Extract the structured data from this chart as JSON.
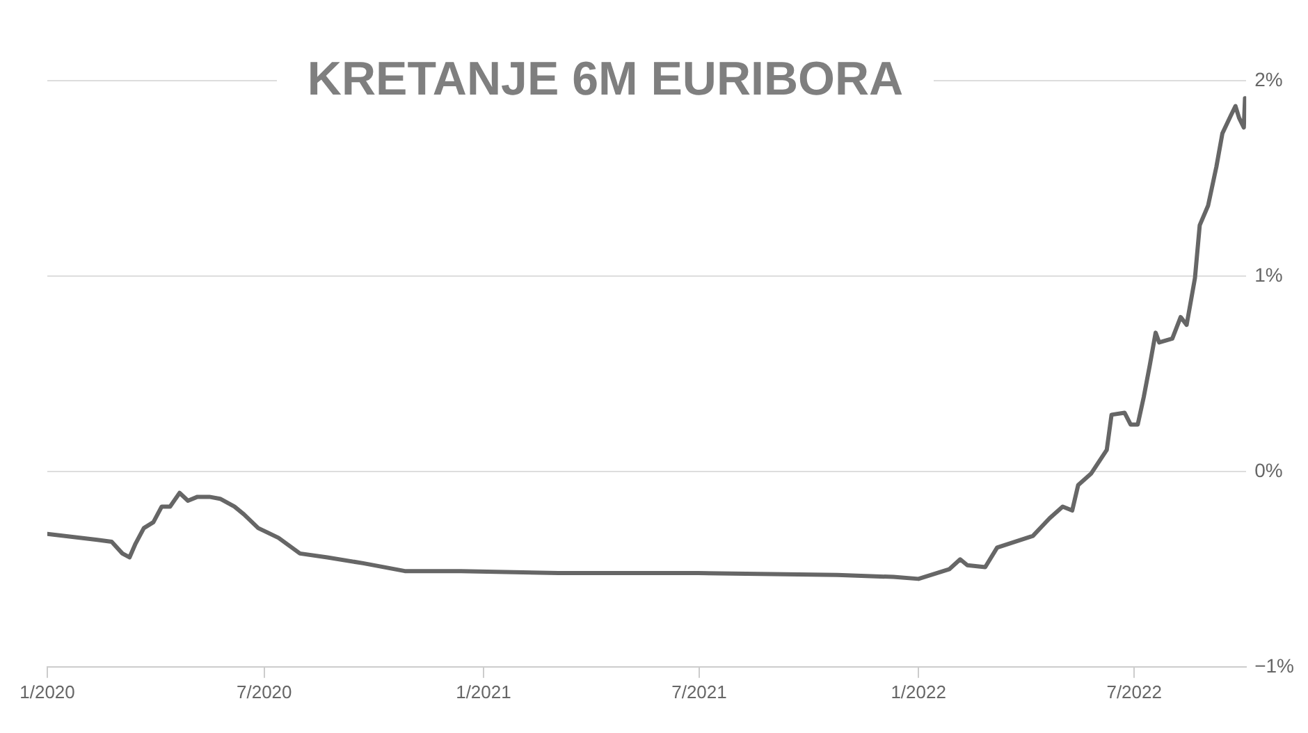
{
  "chart_data": {
    "type": "line",
    "title": "KRETANJE 6M EURIBORA",
    "x": [
      "2020-01-01",
      "2020-02-12",
      "2020-02-24",
      "2020-03-04",
      "2020-03-10",
      "2020-03-15",
      "2020-03-22",
      "2020-03-30",
      "2020-04-06",
      "2020-04-13",
      "2020-04-21",
      "2020-04-28",
      "2020-05-06",
      "2020-05-16",
      "2020-05-25",
      "2020-06-06",
      "2020-06-14",
      "2020-06-26",
      "2020-07-13",
      "2020-07-31",
      "2020-08-23",
      "2020-09-22",
      "2020-10-27",
      "2020-12-13",
      "2021-03-05",
      "2021-06-30",
      "2021-10-25",
      "2021-12-11",
      "2022-01-01",
      "2022-01-27",
      "2022-02-05",
      "2022-02-11",
      "2022-02-26",
      "2022-03-08",
      "2022-04-07",
      "2022-04-21",
      "2022-05-02",
      "2022-05-10",
      "2022-05-15",
      "2022-05-26",
      "2022-06-08",
      "2022-06-12",
      "2022-06-23",
      "2022-06-28",
      "2022-07-04",
      "2022-07-09",
      "2022-07-14",
      "2022-07-19",
      "2022-07-22",
      "2022-08-02",
      "2022-08-09",
      "2022-08-14",
      "2022-08-21",
      "2022-08-25",
      "2022-09-01",
      "2022-09-08",
      "2022-09-13",
      "2022-09-20",
      "2022-09-24",
      "2022-09-27",
      "2022-10-01",
      "2022-10-02"
    ],
    "series": [
      {
        "color": "#666666",
        "values": [
          -0.32,
          -0.35,
          -0.36,
          -0.42,
          -0.44,
          -0.37,
          -0.29,
          -0.26,
          -0.18,
          -0.18,
          -0.11,
          -0.15,
          -0.13,
          -0.13,
          -0.14,
          -0.18,
          -0.22,
          -0.29,
          -0.34,
          -0.42,
          -0.44,
          -0.47,
          -0.51,
          -0.51,
          -0.52,
          -0.52,
          -0.53,
          -0.54,
          -0.55,
          -0.5,
          -0.45,
          -0.48,
          -0.49,
          -0.39,
          -0.33,
          -0.24,
          -0.18,
          -0.2,
          -0.07,
          -0.01,
          0.11,
          0.29,
          0.3,
          0.24,
          0.24,
          0.38,
          0.54,
          0.71,
          0.66,
          0.68,
          0.79,
          0.75,
          0.99,
          1.26,
          1.36,
          1.56,
          1.73,
          1.82,
          1.87,
          1.81,
          1.76,
          1.91
        ]
      }
    ],
    "xlim": [
      "2020-01-01",
      "2022-10-03"
    ],
    "xticks": [
      {
        "value": "2020-01-01",
        "label": "1/2020"
      },
      {
        "value": "2020-07-01",
        "label": "7/2020"
      },
      {
        "value": "2021-01-01",
        "label": "1/2021"
      },
      {
        "value": "2021-07-01",
        "label": "7/2021"
      },
      {
        "value": "2022-01-01",
        "label": "1/2022"
      },
      {
        "value": "2022-07-01",
        "label": "7/2022"
      }
    ],
    "ylim": [
      -1,
      2
    ],
    "yticks": [
      {
        "value": -1,
        "label": "−1%"
      },
      {
        "value": 0,
        "label": "0%"
      },
      {
        "value": 1,
        "label": "1%"
      },
      {
        "value": 2,
        "label": "2%"
      }
    ],
    "grid": "y",
    "legend": false,
    "marker": "none",
    "line_style": "solid"
  }
}
